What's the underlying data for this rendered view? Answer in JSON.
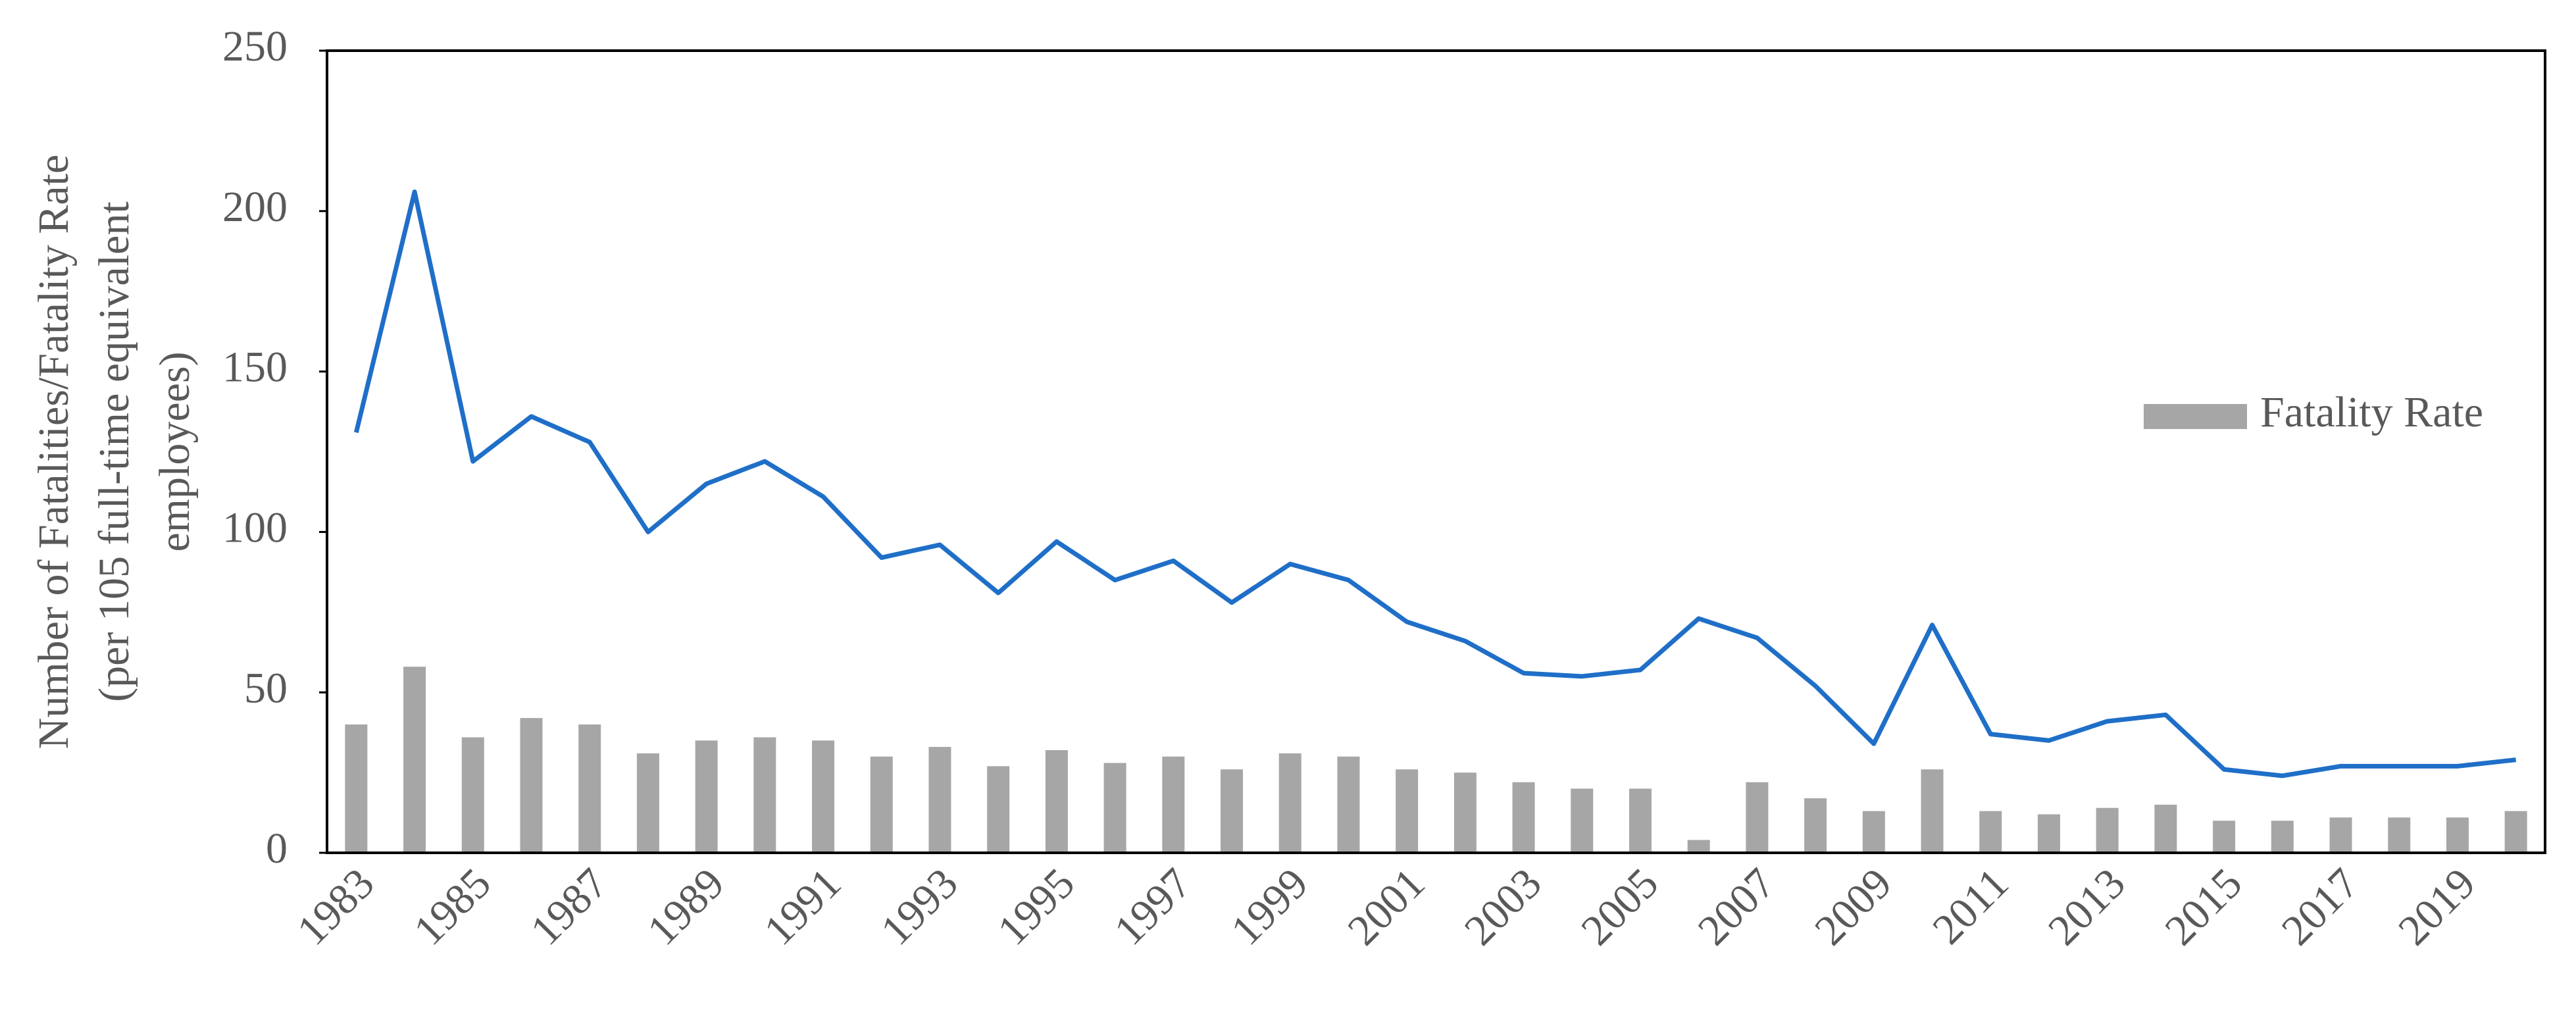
{
  "chart_data": {
    "type": "bar-line",
    "ylabel": [
      "Number of Fatalities/Fatality Rate",
      "(per 105 full-time equivalent",
      "employees)"
    ],
    "categories": [
      "1983",
      null,
      "1985",
      null,
      "1987",
      null,
      "1989",
      null,
      "1991",
      null,
      "1993",
      null,
      "1995",
      null,
      "1997",
      null,
      "1999",
      null,
      "2001",
      null,
      "2003",
      null,
      "2005",
      null,
      "2007",
      null,
      "2009",
      null,
      "2011",
      null,
      "2013",
      null,
      "2015",
      null,
      "2017",
      null,
      "2019",
      null
    ],
    "series": [
      {
        "name": "Fatality Rate",
        "type": "bar",
        "color": "#a6a6a6",
        "values": [
          40,
          58,
          36,
          42,
          40,
          31,
          35,
          36,
          35,
          30,
          33,
          27,
          32,
          28,
          30,
          26,
          31,
          30,
          26,
          25,
          22,
          20,
          20,
          4,
          22,
          17,
          13,
          26,
          13,
          12,
          14,
          15,
          10,
          10,
          11,
          11,
          11,
          13
        ]
      },
      {
        "type": "line",
        "color": "#1f6fc8",
        "values": [
          131,
          206,
          122,
          136,
          128,
          100,
          115,
          122,
          111,
          92,
          96,
          81,
          97,
          85,
          91,
          78,
          90,
          85,
          72,
          66,
          56,
          55,
          57,
          73,
          67,
          52,
          34,
          71,
          37,
          35,
          41,
          43,
          26,
          24,
          27,
          27,
          27,
          29
        ]
      }
    ],
    "ylim": [
      0,
      250
    ],
    "yticks": [
      0,
      50,
      100,
      150,
      200,
      250
    ],
    "legend": "right"
  }
}
